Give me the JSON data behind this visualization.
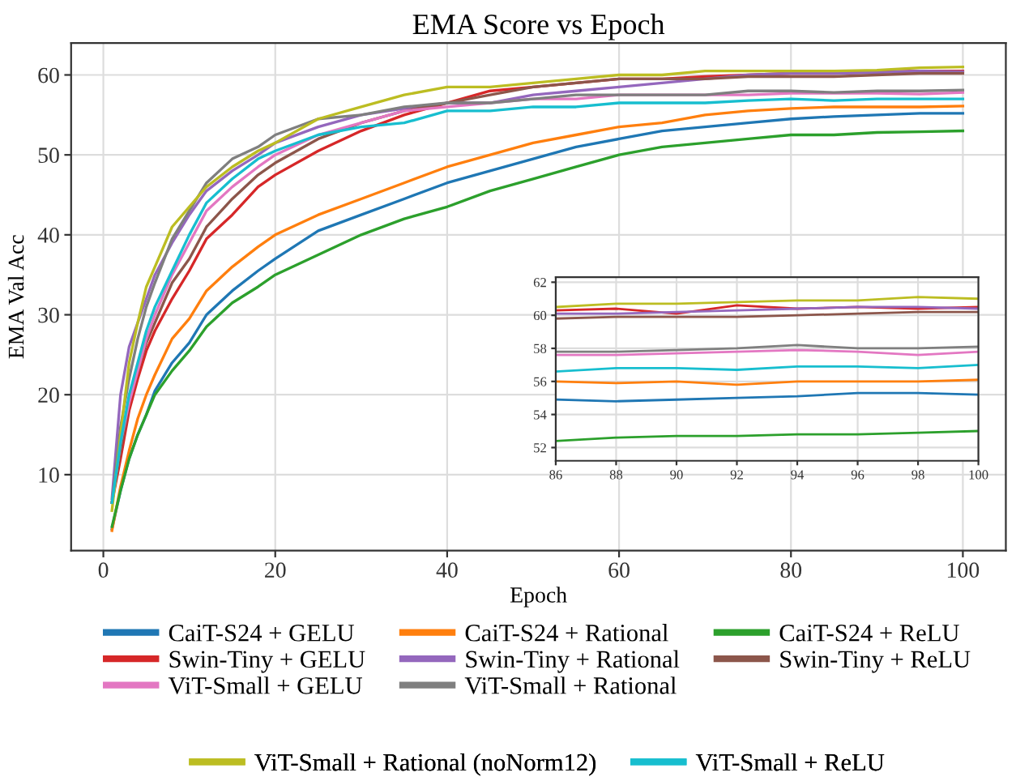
{
  "chart_data": [
    {
      "type": "line",
      "title": "EMA Score vs Epoch",
      "xlabel": "Epoch",
      "ylabel": "EMA Val Acc",
      "x": [
        1,
        2,
        3,
        4,
        5,
        6,
        8,
        10,
        12,
        15,
        18,
        20,
        25,
        30,
        35,
        40,
        45,
        50,
        55,
        60,
        65,
        70,
        75,
        80,
        85,
        90,
        95,
        100
      ],
      "xlim": [
        -3.75,
        105
      ],
      "ylim": [
        0.5,
        64
      ],
      "xticks": [
        0,
        20,
        40,
        60,
        80,
        100
      ],
      "yticks": [
        10,
        20,
        30,
        40,
        50,
        60
      ],
      "grid": true,
      "legend": "bottom",
      "series": [
        {
          "name": "CaiT-S24 + GELU",
          "color": "#1f77b4",
          "values": [
            3.2,
            8,
            12,
            15,
            17.5,
            20.5,
            24,
            26.5,
            30,
            33,
            35.5,
            37,
            40.5,
            42.5,
            44.5,
            46.5,
            48,
            49.5,
            51,
            52,
            53,
            53.5,
            54,
            54.5,
            54.8,
            55,
            55.2,
            55.2
          ]
        },
        {
          "name": "CaiT-S24 + Rational",
          "color": "#ff7f0e",
          "values": [
            3.0,
            8.5,
            13,
            17,
            20,
            22.5,
            27,
            29.5,
            33,
            36,
            38.5,
            40,
            42.5,
            44.5,
            46.5,
            48.5,
            50,
            51.5,
            52.5,
            53.5,
            54,
            55,
            55.5,
            55.8,
            56,
            56,
            56,
            56.1
          ]
        },
        {
          "name": "CaiT-S24 + ReLU",
          "color": "#2ca02c",
          "values": [
            3.5,
            8,
            12,
            15,
            17.5,
            20,
            23,
            25.5,
            28.5,
            31.5,
            33.5,
            35,
            37.5,
            40,
            42,
            43.5,
            45.5,
            47,
            48.5,
            50,
            51,
            51.5,
            52,
            52.5,
            52.5,
            52.8,
            52.9,
            53.0
          ]
        },
        {
          "name": "Swin-Tiny + GELU",
          "color": "#d62728",
          "values": [
            6.5,
            12,
            18,
            22,
            25.5,
            28,
            32,
            35.5,
            39.5,
            42.5,
            46,
            47.5,
            50.5,
            53,
            55,
            56.5,
            58,
            58.5,
            59,
            59.5,
            59.5,
            59.8,
            60,
            60.2,
            60.2,
            60.4,
            60.5,
            60.5
          ]
        },
        {
          "name": "Swin-Tiny + Rational",
          "color": "#9467bd",
          "values": [
            7,
            20,
            26,
            29,
            32,
            35,
            39,
            42.5,
            45.5,
            48,
            50,
            51.5,
            53.5,
            55,
            55.8,
            56.5,
            56.5,
            57.5,
            58,
            58.5,
            59,
            59.5,
            60,
            60.2,
            60.2,
            60.3,
            60.5,
            60.4
          ]
        },
        {
          "name": "Swin-Tiny + ReLU",
          "color": "#8c564b",
          "values": [
            6.5,
            13,
            19,
            23,
            26.5,
            29,
            34,
            37,
            41,
            44.5,
            47.5,
            49,
            52,
            54,
            55.5,
            56.5,
            57.5,
            58.5,
            59,
            59.5,
            59.5,
            59.5,
            59.8,
            59.8,
            59.8,
            60,
            60.2,
            60.2
          ]
        },
        {
          "name": "ViT-Small + GELU",
          "color": "#e377c2",
          "values": [
            6.5,
            14,
            19,
            23,
            27,
            30,
            35,
            39,
            43,
            46,
            48.5,
            50,
            52.5,
            54,
            55.5,
            56,
            56.5,
            57,
            57,
            57.5,
            57.5,
            57.5,
            57.5,
            57.7,
            57.7,
            57.7,
            57.6,
            57.8
          ]
        },
        {
          "name": "ViT-Small + Rational",
          "color": "#7f7f7f",
          "values": [
            6.5,
            16,
            22,
            27,
            31,
            34,
            39.5,
            43,
            46.5,
            49.5,
            51,
            52.5,
            54.5,
            55,
            56,
            56.5,
            56.5,
            57,
            57.5,
            57.5,
            57.5,
            57.5,
            58,
            58,
            57.8,
            58,
            58,
            58.1
          ]
        },
        {
          "name": "ViT-Small + Rational (noNorm12)",
          "color": "#bcbd22",
          "values": [
            5.5,
            15,
            24,
            29,
            33.5,
            36,
            41,
            43.5,
            46,
            48.5,
            50.5,
            51.5,
            54.5,
            56,
            57.5,
            58.5,
            58.5,
            59,
            59.5,
            60,
            60,
            60.5,
            60.5,
            60.5,
            60.5,
            60.6,
            60.9,
            61.0
          ]
        },
        {
          "name": "ViT-Small + ReLU",
          "color": "#17becf",
          "values": [
            6.5,
            14,
            20,
            24,
            28,
            31,
            35.5,
            40,
            44,
            47,
            49.5,
            50.5,
            52.5,
            53.5,
            54,
            55.5,
            55.5,
            56,
            56,
            56.5,
            56.5,
            56.5,
            56.8,
            57,
            56.8,
            57,
            57,
            57
          ]
        }
      ]
    },
    {
      "type": "line",
      "x": [
        86,
        88,
        90,
        92,
        94,
        96,
        98,
        100
      ],
      "xlim": [
        86,
        100
      ],
      "ylim": [
        51.2,
        62.3
      ],
      "xticks": [
        86,
        88,
        90,
        92,
        94,
        96,
        98,
        100
      ],
      "yticks": [
        52,
        54,
        56,
        58,
        60,
        62
      ],
      "grid": true,
      "series": [
        {
          "color": "#1f77b4",
          "values": [
            54.9,
            54.8,
            54.9,
            55.0,
            55.1,
            55.3,
            55.3,
            55.2
          ]
        },
        {
          "color": "#ff7f0e",
          "values": [
            56.0,
            55.9,
            56.0,
            55.8,
            56.0,
            56.0,
            56.0,
            56.1
          ]
        },
        {
          "color": "#2ca02c",
          "values": [
            52.4,
            52.6,
            52.7,
            52.7,
            52.8,
            52.8,
            52.9,
            53.0
          ]
        },
        {
          "color": "#d62728",
          "values": [
            60.3,
            60.4,
            60.1,
            60.6,
            60.4,
            60.5,
            60.4,
            60.5
          ]
        },
        {
          "color": "#9467bd",
          "values": [
            60.1,
            60.1,
            60.2,
            60.3,
            60.4,
            60.5,
            60.5,
            60.4
          ]
        },
        {
          "color": "#8c564b",
          "values": [
            59.8,
            59.9,
            59.9,
            59.9,
            60.0,
            60.1,
            60.2,
            60.2
          ]
        },
        {
          "color": "#e377c2",
          "values": [
            57.6,
            57.6,
            57.7,
            57.8,
            57.9,
            57.8,
            57.6,
            57.8
          ]
        },
        {
          "color": "#7f7f7f",
          "values": [
            57.8,
            57.8,
            57.9,
            58.0,
            58.2,
            58.0,
            58.0,
            58.1
          ]
        },
        {
          "color": "#bcbd22",
          "values": [
            60.5,
            60.7,
            60.7,
            60.8,
            60.9,
            60.9,
            61.1,
            61.0
          ]
        },
        {
          "color": "#17becf",
          "values": [
            56.6,
            56.8,
            56.8,
            56.7,
            56.9,
            56.9,
            56.8,
            57.0
          ]
        }
      ]
    }
  ]
}
